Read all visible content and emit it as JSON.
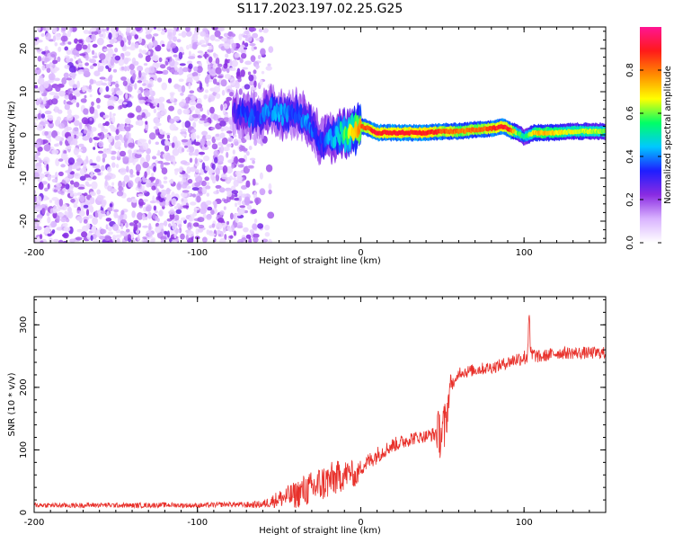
{
  "figure_title": "S117.2023.197.02.25.G25",
  "chart_data": [
    {
      "type": "heatmap",
      "title": "",
      "xlabel": "Height of straight line (km)",
      "ylabel": "Frequency (Hz)",
      "xlim": [
        -200,
        150
      ],
      "ylim": [
        -25,
        25
      ],
      "x_ticks": [
        -200,
        -100,
        0,
        100
      ],
      "x_tick_labels": [
        "-200",
        "-100",
        "0",
        "100"
      ],
      "y_ticks": [
        -20,
        -10,
        0,
        10,
        20
      ],
      "y_tick_labels": [
        "-20",
        "-10",
        "0",
        "10",
        "20"
      ],
      "grid": false,
      "colorbar": {
        "label": "Normalized spectral amplitude",
        "range": [
          0,
          1
        ],
        "ticks": [
          0.0,
          0.2,
          0.4,
          0.6,
          0.8
        ],
        "tick_labels": [
          "0.0",
          "0.2",
          "0.4",
          "0.6",
          "0.8"
        ],
        "colormap": [
          "#ffffff",
          "#d9b3ff",
          "#8a2be2",
          "#1e1eff",
          "#00c8ff",
          "#00ff66",
          "#ffff00",
          "#ff8c00",
          "#ff1a1a",
          "#ff1493"
        ]
      },
      "noise_region": {
        "x": [
          -200,
          -75
        ],
        "y": [
          -25,
          25
        ],
        "amplitude": [
          0.05,
          0.25
        ]
      },
      "signal_trace": {
        "x": [
          -78,
          -70,
          -62,
          -55,
          -48,
          -40,
          -34,
          -28,
          -24,
          -20,
          -16,
          -12,
          -8,
          -4,
          0,
          5,
          10,
          20,
          30,
          40,
          50,
          60,
          70,
          80,
          88,
          92,
          96,
          100,
          106,
          112,
          120,
          130,
          140,
          150
        ],
        "y": [
          5.5,
          4.5,
          4.0,
          6.0,
          4.5,
          5.0,
          4.0,
          1.0,
          -2.0,
          -0.5,
          -1.0,
          0.5,
          0.0,
          1.0,
          2.0,
          1.5,
          0.5,
          0.5,
          0.5,
          0.5,
          0.8,
          0.8,
          1.2,
          1.5,
          2.0,
          1.0,
          0.5,
          -0.5,
          0.5,
          0.5,
          0.5,
          0.8,
          0.8,
          0.8
        ],
        "amplitude": [
          0.3,
          0.35,
          0.35,
          0.4,
          0.4,
          0.35,
          0.4,
          0.35,
          0.35,
          0.4,
          0.45,
          0.5,
          0.6,
          0.7,
          0.8,
          0.85,
          0.9,
          0.9,
          0.9,
          0.9,
          0.85,
          0.8,
          0.8,
          0.85,
          0.9,
          0.85,
          0.6,
          0.5,
          0.7,
          0.75,
          0.7,
          0.65,
          0.65,
          0.6
        ]
      }
    },
    {
      "type": "line",
      "title": "",
      "xlabel": "Height of straight line (km)",
      "ylabel": "SNR (10 * v/v)",
      "xlim": [
        -200,
        150
      ],
      "ylim": [
        0,
        345
      ],
      "x_ticks": [
        -200,
        -100,
        0,
        100
      ],
      "x_tick_labels": [
        "-200",
        "-100",
        "0",
        "100"
      ],
      "y_ticks": [
        0,
        100,
        200,
        300
      ],
      "y_tick_labels": [
        "0",
        "100",
        "200",
        "300"
      ],
      "grid": false,
      "series": [
        {
          "color": "#e8302a",
          "x": [
            -200,
            -180,
            -160,
            -140,
            -120,
            -100,
            -90,
            -80,
            -70,
            -60,
            -50,
            -45,
            -40,
            -35,
            -30,
            -25,
            -20,
            -15,
            -10,
            -6,
            -3,
            0,
            5,
            10,
            15,
            20,
            25,
            30,
            35,
            40,
            45,
            48,
            50,
            52,
            55,
            58,
            60,
            65,
            70,
            75,
            80,
            85,
            90,
            95,
            100,
            102,
            103,
            104,
            106,
            110,
            115,
            120,
            125,
            130,
            135,
            140,
            145,
            150
          ],
          "y": [
            12,
            11,
            12,
            11,
            12,
            11,
            12,
            13,
            12,
            13,
            22,
            25,
            28,
            35,
            38,
            45,
            50,
            55,
            60,
            65,
            55,
            72,
            82,
            92,
            100,
            108,
            112,
            118,
            120,
            122,
            125,
            130,
            125,
            140,
            210,
            205,
            225,
            225,
            228,
            230,
            232,
            235,
            240,
            245,
            248,
            250,
            320,
            250,
            252,
            248,
            252,
            255,
            255,
            255,
            255,
            255,
            255,
            255
          ],
          "noise": [
            4,
            4,
            4,
            4,
            4,
            4,
            4,
            4,
            5,
            6,
            14,
            18,
            22,
            26,
            28,
            30,
            30,
            28,
            24,
            20,
            18,
            14,
            14,
            14,
            12,
            12,
            12,
            12,
            10,
            10,
            12,
            40,
            50,
            40,
            12,
            10,
            10,
            10,
            10,
            10,
            10,
            10,
            10,
            12,
            12,
            20,
            20,
            20,
            12,
            10,
            10,
            10,
            10,
            10,
            10,
            10,
            10,
            10
          ]
        }
      ]
    }
  ]
}
